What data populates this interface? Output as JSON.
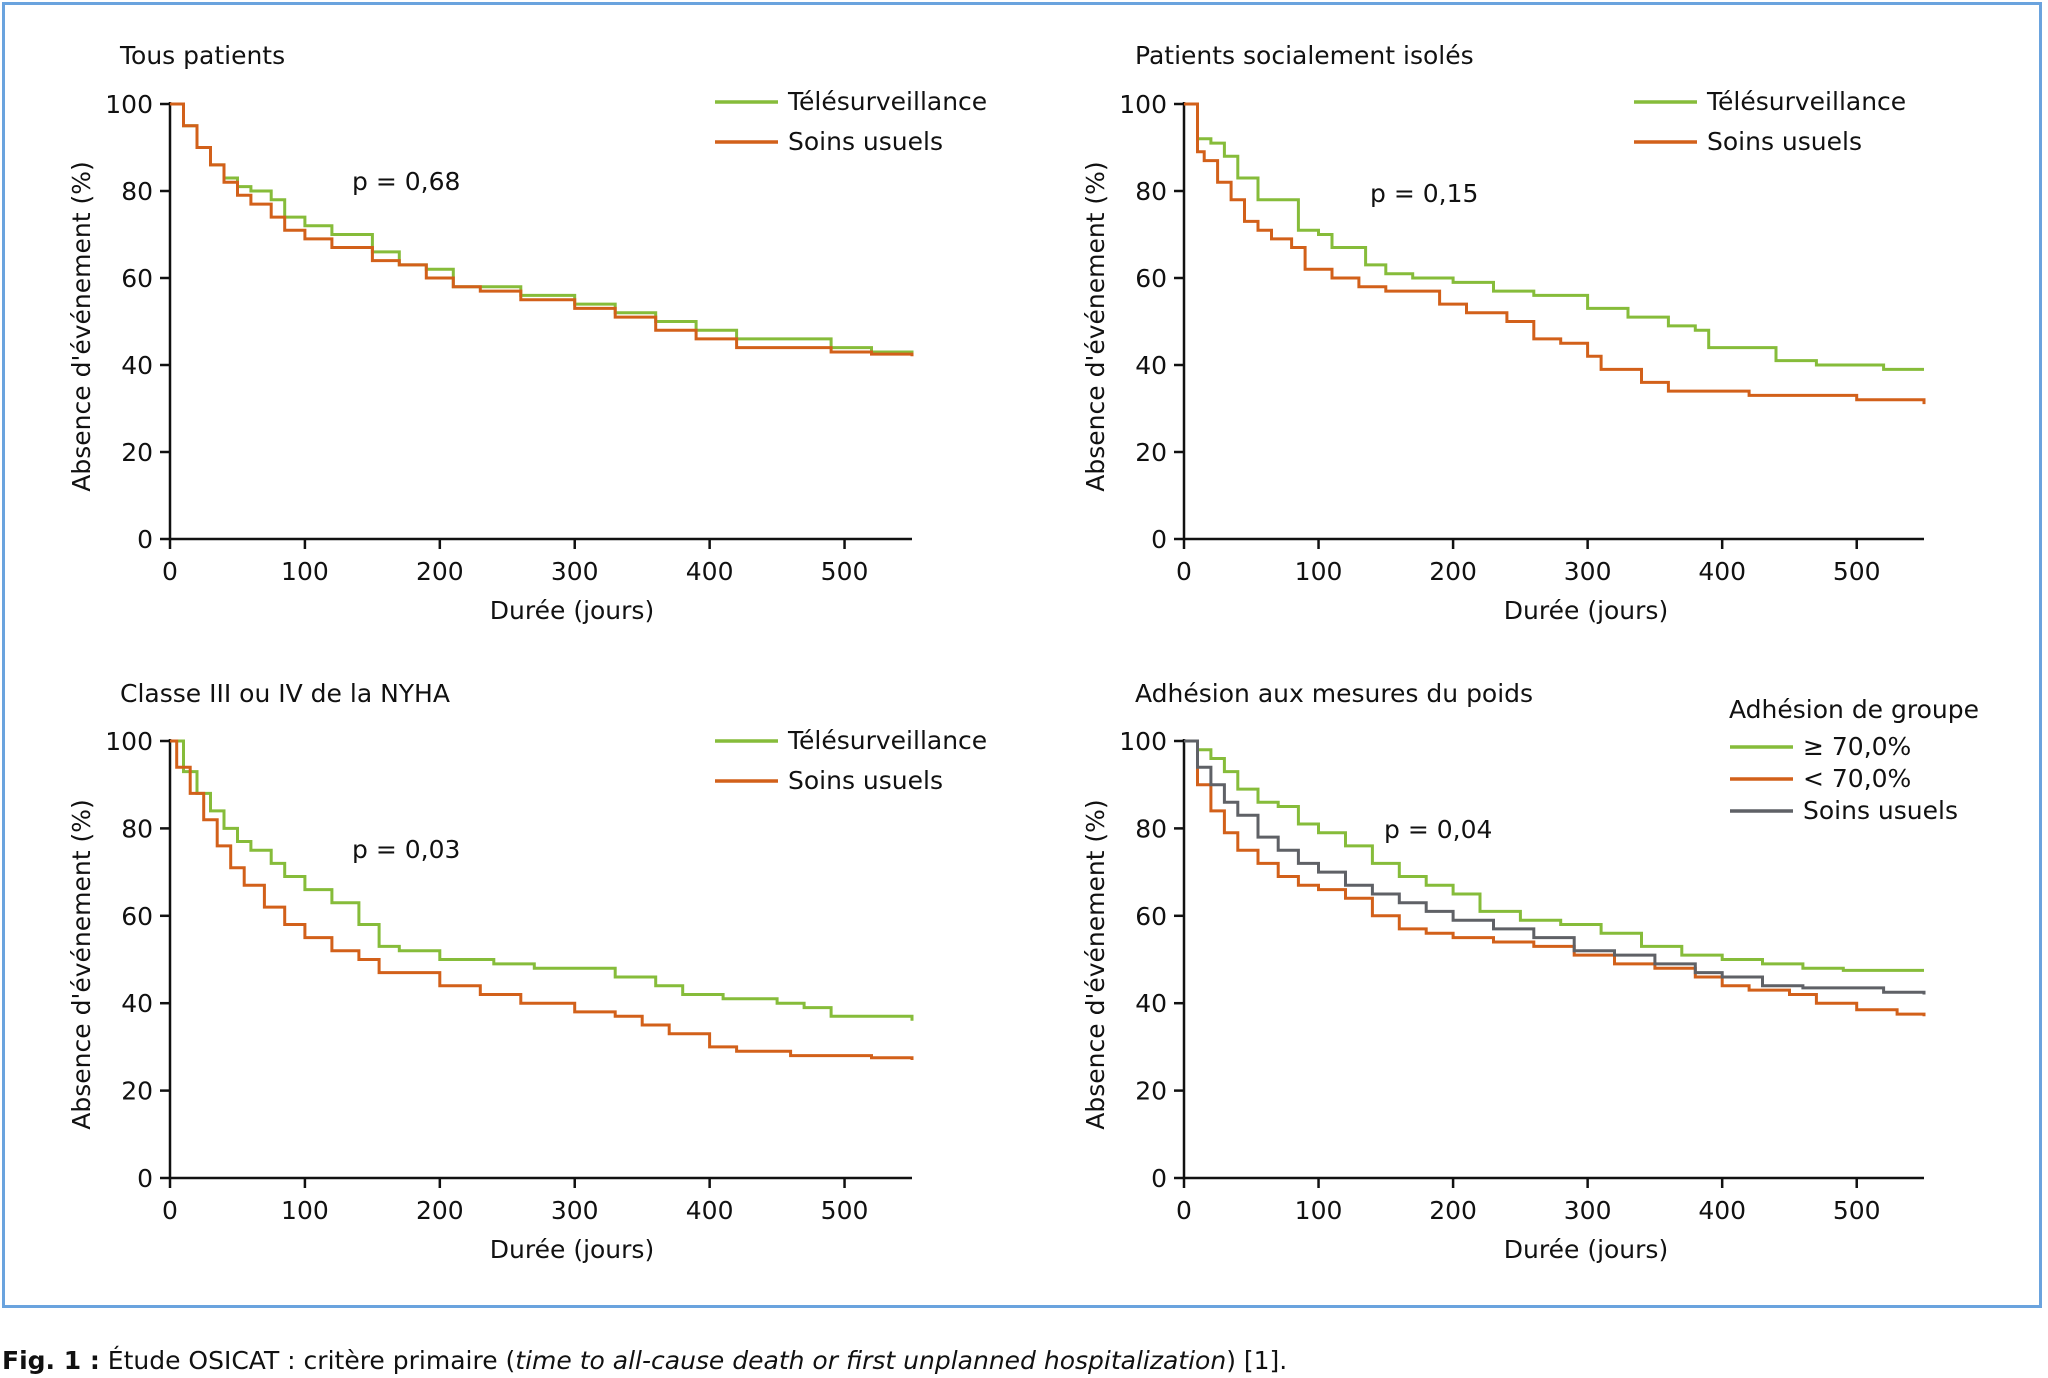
{
  "caption": {
    "label": "Fig. 1 :",
    "text": " Étude OSICAT : critère primaire (",
    "italic": "time to all-cause death or first unplanned hospitalization",
    "suffix": ") [1]."
  },
  "colors": {
    "green": "#86bc3a",
    "orange": "#d2601a",
    "gray": "#5f6166",
    "axis": "#111111",
    "frame": "#6aa3de"
  },
  "chart_data": [
    {
      "type": "line",
      "title": "Tous patients",
      "xlabel": "Durée (jours)",
      "ylabel": "Absence d'événement (%)",
      "xlim": [
        0,
        550
      ],
      "ylim": [
        0,
        100
      ],
      "xticks": [
        0,
        100,
        200,
        300,
        400,
        500
      ],
      "yticks": [
        0,
        20,
        40,
        60,
        80,
        100
      ],
      "annotation": "p = 0,68",
      "legend": {
        "title": "",
        "position": "top-right"
      },
      "series": [
        {
          "name": "Télésurveillance",
          "color": "green",
          "points": [
            [
              0,
              100
            ],
            [
              10,
              95
            ],
            [
              20,
              90
            ],
            [
              30,
              86
            ],
            [
              40,
              83
            ],
            [
              50,
              81
            ],
            [
              60,
              80
            ],
            [
              75,
              78
            ],
            [
              85,
              74
            ],
            [
              100,
              72
            ],
            [
              120,
              70
            ],
            [
              150,
              66
            ],
            [
              170,
              63
            ],
            [
              190,
              62
            ],
            [
              210,
              58
            ],
            [
              230,
              58
            ],
            [
              260,
              56
            ],
            [
              300,
              54
            ],
            [
              330,
              52
            ],
            [
              360,
              50
            ],
            [
              390,
              48
            ],
            [
              420,
              46
            ],
            [
              460,
              46
            ],
            [
              490,
              44
            ],
            [
              520,
              43
            ],
            [
              550,
              42.5
            ]
          ]
        },
        {
          "name": "Soins usuels",
          "color": "orange",
          "points": [
            [
              0,
              100
            ],
            [
              10,
              95
            ],
            [
              20,
              90
            ],
            [
              30,
              86
            ],
            [
              40,
              82
            ],
            [
              50,
              79
            ],
            [
              60,
              77
            ],
            [
              75,
              74
            ],
            [
              85,
              71
            ],
            [
              100,
              69
            ],
            [
              120,
              67
            ],
            [
              150,
              64
            ],
            [
              170,
              63
            ],
            [
              190,
              60
            ],
            [
              210,
              58
            ],
            [
              230,
              57
            ],
            [
              260,
              55
            ],
            [
              300,
              53
            ],
            [
              330,
              51
            ],
            [
              360,
              48
            ],
            [
              390,
              46
            ],
            [
              420,
              44
            ],
            [
              460,
              44
            ],
            [
              490,
              43
            ],
            [
              520,
              42.5
            ],
            [
              550,
              42
            ]
          ]
        }
      ]
    },
    {
      "type": "line",
      "title": "Patients socialement isolés",
      "xlabel": "Durée (jours)",
      "ylabel": "Absence d'événement (%)",
      "xlim": [
        0,
        550
      ],
      "ylim": [
        0,
        100
      ],
      "xticks": [
        0,
        100,
        200,
        300,
        400,
        500
      ],
      "yticks": [
        0,
        20,
        40,
        60,
        80,
        100
      ],
      "annotation": "p = 0,15",
      "legend": {
        "title": "",
        "position": "top-right"
      },
      "series": [
        {
          "name": "Télésurveillance",
          "color": "green",
          "points": [
            [
              0,
              100
            ],
            [
              10,
              92
            ],
            [
              20,
              91
            ],
            [
              30,
              88
            ],
            [
              40,
              83
            ],
            [
              55,
              78
            ],
            [
              70,
              78
            ],
            [
              85,
              71
            ],
            [
              100,
              70
            ],
            [
              110,
              67
            ],
            [
              120,
              67
            ],
            [
              135,
              63
            ],
            [
              150,
              61
            ],
            [
              170,
              60
            ],
            [
              200,
              59
            ],
            [
              230,
              57
            ],
            [
              260,
              56
            ],
            [
              300,
              53
            ],
            [
              330,
              51
            ],
            [
              360,
              49
            ],
            [
              380,
              48
            ],
            [
              390,
              44
            ],
            [
              420,
              44
            ],
            [
              440,
              41
            ],
            [
              470,
              40
            ],
            [
              500,
              40
            ],
            [
              520,
              39
            ],
            [
              550,
              39
            ]
          ]
        },
        {
          "name": "Soins usuels",
          "color": "orange",
          "points": [
            [
              0,
              100
            ],
            [
              10,
              89
            ],
            [
              15,
              87
            ],
            [
              25,
              82
            ],
            [
              35,
              78
            ],
            [
              45,
              73
            ],
            [
              55,
              71
            ],
            [
              65,
              69
            ],
            [
              80,
              67
            ],
            [
              90,
              62
            ],
            [
              110,
              60
            ],
            [
              130,
              58
            ],
            [
              150,
              57
            ],
            [
              170,
              57
            ],
            [
              190,
              54
            ],
            [
              210,
              52
            ],
            [
              240,
              50
            ],
            [
              260,
              46
            ],
            [
              280,
              45
            ],
            [
              300,
              42
            ],
            [
              310,
              39
            ],
            [
              330,
              39
            ],
            [
              340,
              36
            ],
            [
              360,
              34
            ],
            [
              400,
              34
            ],
            [
              420,
              33
            ],
            [
              480,
              33
            ],
            [
              500,
              32
            ],
            [
              550,
              31
            ]
          ]
        }
      ]
    },
    {
      "type": "line",
      "title": "Classe III ou IV de la NYHA",
      "xlabel": "Durée (jours)",
      "ylabel": "Absence d'événement (%)",
      "xlim": [
        0,
        550
      ],
      "ylim": [
        0,
        100
      ],
      "xticks": [
        0,
        100,
        200,
        300,
        400,
        500
      ],
      "yticks": [
        0,
        20,
        40,
        60,
        80,
        100
      ],
      "annotation": "p = 0,03",
      "legend": {
        "title": "",
        "position": "top-right"
      },
      "series": [
        {
          "name": "Télésurveillance",
          "color": "green",
          "points": [
            [
              0,
              100
            ],
            [
              10,
              93
            ],
            [
              20,
              88
            ],
            [
              30,
              84
            ],
            [
              40,
              80
            ],
            [
              50,
              77
            ],
            [
              60,
              75
            ],
            [
              75,
              72
            ],
            [
              85,
              69
            ],
            [
              100,
              66
            ],
            [
              120,
              63
            ],
            [
              140,
              58
            ],
            [
              155,
              53
            ],
            [
              170,
              52
            ],
            [
              200,
              50
            ],
            [
              240,
              49
            ],
            [
              270,
              48
            ],
            [
              300,
              48
            ],
            [
              330,
              46
            ],
            [
              360,
              44
            ],
            [
              380,
              42
            ],
            [
              410,
              41
            ],
            [
              450,
              40
            ],
            [
              470,
              39
            ],
            [
              490,
              37
            ],
            [
              520,
              37
            ],
            [
              550,
              36
            ]
          ]
        },
        {
          "name": "Soins usuels",
          "color": "orange",
          "points": [
            [
              0,
              100
            ],
            [
              5,
              94
            ],
            [
              15,
              88
            ],
            [
              25,
              82
            ],
            [
              35,
              76
            ],
            [
              45,
              71
            ],
            [
              55,
              67
            ],
            [
              70,
              62
            ],
            [
              85,
              58
            ],
            [
              100,
              55
            ],
            [
              120,
              52
            ],
            [
              140,
              50
            ],
            [
              155,
              47
            ],
            [
              170,
              47
            ],
            [
              200,
              44
            ],
            [
              230,
              42
            ],
            [
              260,
              40
            ],
            [
              300,
              38
            ],
            [
              330,
              37
            ],
            [
              350,
              35
            ],
            [
              370,
              33
            ],
            [
              400,
              30
            ],
            [
              420,
              29
            ],
            [
              460,
              28
            ],
            [
              500,
              28
            ],
            [
              520,
              27.5
            ],
            [
              550,
              27
            ]
          ]
        }
      ]
    },
    {
      "type": "line",
      "title": "Adhésion aux mesures du poids",
      "xlabel": "Durée (jours)",
      "ylabel": "Absence d'événement (%)",
      "xlim": [
        0,
        550
      ],
      "ylim": [
        0,
        100
      ],
      "xticks": [
        0,
        100,
        200,
        300,
        400,
        500
      ],
      "yticks": [
        0,
        20,
        40,
        60,
        80,
        100
      ],
      "annotation": "p = 0,04",
      "legend": {
        "title": "Adhésion de groupe",
        "position": "top-right"
      },
      "series": [
        {
          "name": "≥ 70,0%",
          "color": "green",
          "points": [
            [
              0,
              100
            ],
            [
              10,
              98
            ],
            [
              20,
              96
            ],
            [
              30,
              93
            ],
            [
              40,
              89
            ],
            [
              55,
              86
            ],
            [
              70,
              85
            ],
            [
              85,
              81
            ],
            [
              100,
              79
            ],
            [
              120,
              76
            ],
            [
              140,
              72
            ],
            [
              160,
              69
            ],
            [
              180,
              67
            ],
            [
              200,
              65
            ],
            [
              220,
              61
            ],
            [
              250,
              59
            ],
            [
              280,
              58
            ],
            [
              310,
              56
            ],
            [
              340,
              53
            ],
            [
              370,
              51
            ],
            [
              400,
              50
            ],
            [
              430,
              49
            ],
            [
              460,
              48
            ],
            [
              490,
              47.5
            ],
            [
              520,
              47.5
            ],
            [
              550,
              47.5
            ]
          ]
        },
        {
          "name": "< 70,0%",
          "color": "orange",
          "points": [
            [
              0,
              100
            ],
            [
              10,
              90
            ],
            [
              20,
              84
            ],
            [
              30,
              79
            ],
            [
              40,
              75
            ],
            [
              55,
              72
            ],
            [
              70,
              69
            ],
            [
              85,
              67
            ],
            [
              100,
              66
            ],
            [
              120,
              64
            ],
            [
              140,
              60
            ],
            [
              160,
              57
            ],
            [
              180,
              56
            ],
            [
              200,
              55
            ],
            [
              230,
              54
            ],
            [
              260,
              53
            ],
            [
              290,
              51
            ],
            [
              320,
              49
            ],
            [
              350,
              48
            ],
            [
              380,
              46
            ],
            [
              400,
              44
            ],
            [
              420,
              43
            ],
            [
              450,
              42
            ],
            [
              470,
              40
            ],
            [
              500,
              38.5
            ],
            [
              530,
              37.5
            ],
            [
              550,
              37
            ]
          ]
        },
        {
          "name": "Soins usuels",
          "color": "gray",
          "points": [
            [
              0,
              100
            ],
            [
              10,
              94
            ],
            [
              20,
              90
            ],
            [
              30,
              86
            ],
            [
              40,
              83
            ],
            [
              55,
              78
            ],
            [
              70,
              75
            ],
            [
              85,
              72
            ],
            [
              100,
              70
            ],
            [
              120,
              67
            ],
            [
              140,
              65
            ],
            [
              160,
              63
            ],
            [
              180,
              61
            ],
            [
              200,
              59
            ],
            [
              230,
              57
            ],
            [
              260,
              55
            ],
            [
              290,
              52
            ],
            [
              320,
              51
            ],
            [
              350,
              49
            ],
            [
              380,
              47
            ],
            [
              400,
              46
            ],
            [
              430,
              44
            ],
            [
              460,
              43.5
            ],
            [
              490,
              43.5
            ],
            [
              520,
              42.5
            ],
            [
              550,
              42
            ]
          ]
        }
      ]
    }
  ]
}
